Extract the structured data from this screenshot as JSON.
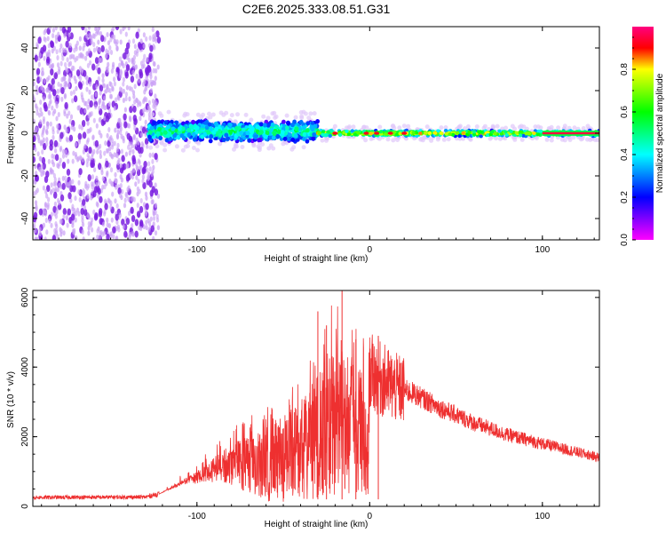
{
  "chart_data": [
    {
      "type": "heatmap",
      "title": "C2E6.2025.333.08.51.G31",
      "xlabel": "Height of straight line (km)",
      "ylabel": "Frequency (Hz)",
      "xlim": [
        -195,
        133
      ],
      "ylim": [
        -50,
        50
      ],
      "x_ticks": [
        -100,
        0,
        100
      ],
      "x_tick_labels": [
        "-100",
        "0",
        "100"
      ],
      "y_ticks": [
        -40,
        -20,
        0,
        20,
        40
      ],
      "y_tick_labels": [
        "-40",
        "-20",
        "0",
        "20",
        "40"
      ],
      "colorbar": {
        "label": "Normalized spectral amplitude",
        "range": [
          0,
          1
        ],
        "ticks": [
          0.0,
          0.2,
          0.4,
          0.6,
          0.8
        ],
        "tick_labels": [
          "0.0",
          "0.2",
          "0.4",
          "0.6",
          "0.8"
        ],
        "colormap": "rainbow"
      },
      "regions": [
        {
          "name": "noise-scatter",
          "x_range": [
            -195,
            -122
          ],
          "y_range": [
            -50,
            50
          ],
          "amplitude": 0.12
        },
        {
          "name": "wide-band",
          "x_range": [
            -128,
            -30
          ],
          "y_center": 1,
          "half_width": 5,
          "amplitude": 0.35
        },
        {
          "name": "narrow-band",
          "x_range": [
            -30,
            133
          ],
          "y_center": 0,
          "half_width": 1.5,
          "amplitude": 0.6
        },
        {
          "name": "peak-band",
          "x_range": [
            100,
            133
          ],
          "y_center": 0,
          "half_width": 1,
          "amplitude": 0.95
        }
      ]
    },
    {
      "type": "line",
      "xlabel": "Height of straight line (km)",
      "ylabel": "SNR (10 * v/v)",
      "xlim": [
        -195,
        133
      ],
      "ylim": [
        0,
        6200
      ],
      "x_ticks": [
        -100,
        0,
        100
      ],
      "x_tick_labels": [
        "-100",
        "0",
        "100"
      ],
      "y_ticks": [
        0,
        2000,
        4000,
        6000
      ],
      "y_tick_labels": [
        "0",
        "2000",
        "4000",
        "6000"
      ],
      "color": "#ee3030",
      "envelope": {
        "x": [
          -195,
          -130,
          -122,
          -100,
          -80,
          -60,
          -40,
          -30,
          -20,
          -12,
          -5,
          5,
          15,
          25,
          40,
          60,
          80,
          100,
          133
        ],
        "y": [
          250,
          260,
          350,
          1000,
          1800,
          2300,
          3000,
          3800,
          5000,
          4300,
          4000,
          3700,
          3400,
          3250,
          2850,
          2400,
          2050,
          1800,
          1400
        ]
      },
      "spikes": [
        {
          "x": -30,
          "y": 5600
        },
        {
          "x": -25,
          "y": 5200
        },
        {
          "x": -16,
          "y": 6200
        },
        {
          "x": -8,
          "y": 4800
        },
        {
          "x": 5,
          "y": 4900
        }
      ]
    }
  ]
}
